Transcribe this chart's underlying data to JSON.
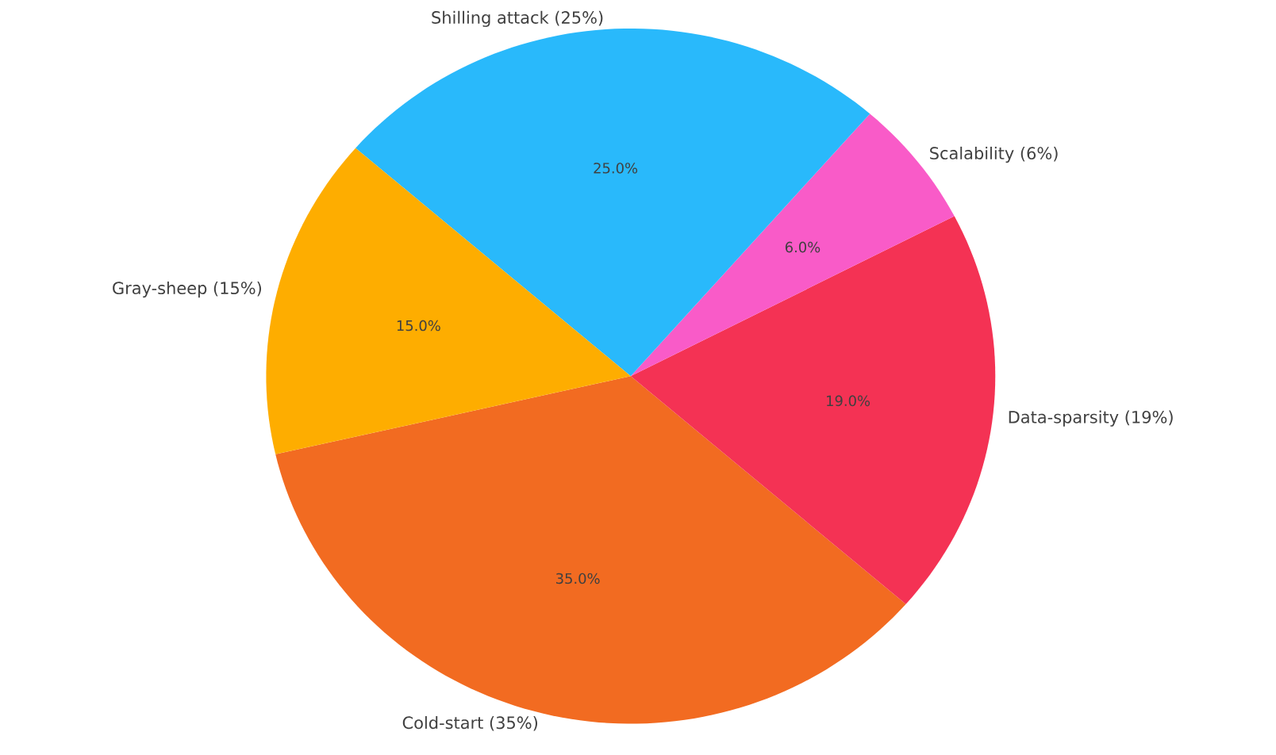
{
  "chart_data": {
    "type": "pie",
    "categories": [
      "Cold-start (35%)",
      "Data-sparsity (19%)",
      "Scalability (6%)",
      "Shilling attack (25%)",
      "Gray-sheep (15%)"
    ],
    "values": [
      35,
      19,
      6,
      25,
      15
    ],
    "colors": [
      "#f26b21",
      "#f43254",
      "#f95bc8",
      "#29b9fb",
      "#fead00"
    ],
    "value_labels": [
      "35.0%",
      "19.0%",
      "6.0%",
      "25.0%",
      "15.0%"
    ]
  }
}
